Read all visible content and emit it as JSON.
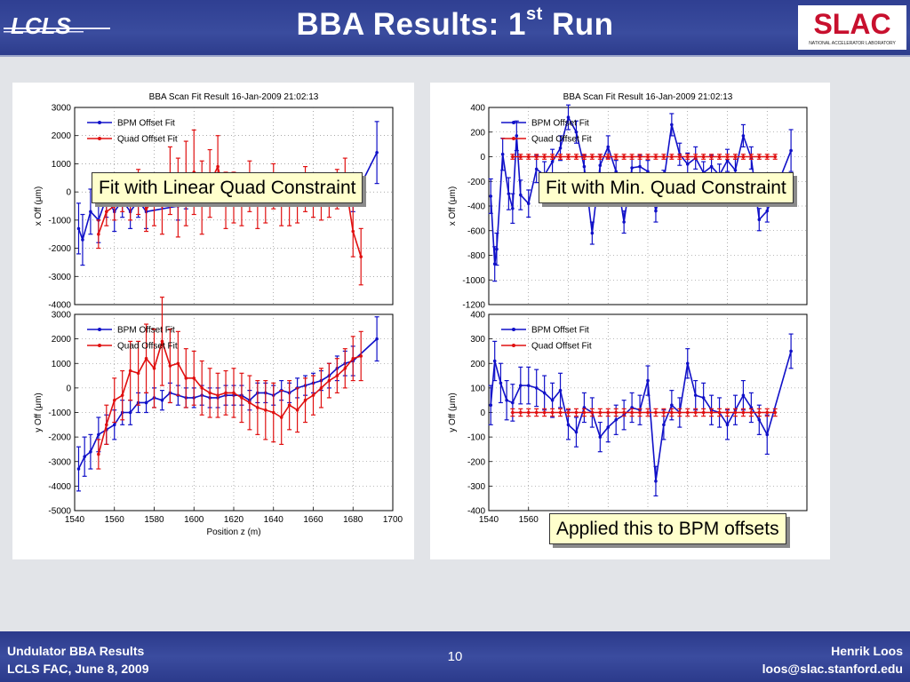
{
  "header": {
    "title_main": "BBA Results: 1",
    "title_sup": "st",
    "title_end": " Run",
    "logo_left": "LCLS",
    "logo_right": "SLAC",
    "logo_right_sub": "NATIONAL ACCELERATOR LABORATORY"
  },
  "callouts": {
    "linear": "Fit with Linear Quad Constraint",
    "min": "Fit with Min. Quad Constraint",
    "applied": "Applied this to BPM offsets"
  },
  "footer": {
    "left_line1": "Undulator BBA Results",
    "left_line2": "LCLS FAC, June 8, 2009",
    "page": "10",
    "right_line1": "Henrik Loos",
    "right_line2": "loos@slac.stanford.edu"
  },
  "colors": {
    "bpm": "#1010c8",
    "quad": "#e01010",
    "header": "#34449a"
  },
  "chart_data": [
    {
      "id": "left-x",
      "type": "line",
      "title": "BBA Scan Fit Result 16-Jan-2009 21:02:13",
      "ylabel": "x  Off   (μm)",
      "xlabel": "",
      "xlim": [
        1540,
        1700
      ],
      "ylim": [
        -4000,
        3000
      ],
      "xticks": [],
      "yticks": [
        3000,
        2000,
        1000,
        0,
        -1000,
        -2000,
        -3000,
        -4000
      ],
      "legend": [
        "BPM Offset Fit",
        "Quad Offset Fit"
      ],
      "series": [
        {
          "name": "BPM Offset Fit",
          "x": [
            1542,
            1544,
            1548,
            1552,
            1556,
            1560,
            1564,
            1568,
            1572,
            1576,
            1592,
            1596,
            1680,
            1692
          ],
          "y": [
            -1300,
            -1700,
            -700,
            -1000,
            -200,
            -700,
            -300,
            -700,
            -300,
            -700,
            -500,
            -100,
            -300,
            1400
          ],
          "err": [
            900,
            900,
            800,
            800,
            700,
            700,
            600,
            600,
            600,
            600,
            500,
            500,
            400,
            1100
          ]
        },
        {
          "name": "Quad Offset Fit",
          "x": [
            1552,
            1556,
            1560,
            1564,
            1568,
            1572,
            1576,
            1580,
            1584,
            1588,
            1592,
            1596,
            1600,
            1604,
            1608,
            1612,
            1616,
            1620,
            1624,
            1628,
            1632,
            1636,
            1640,
            1644,
            1648,
            1652,
            1656,
            1660,
            1664,
            1668,
            1672,
            1676,
            1680,
            1684
          ],
          "y": [
            -1500,
            -700,
            -500,
            -200,
            -400,
            0,
            -600,
            -300,
            -500,
            400,
            -200,
            300,
            700,
            -200,
            300,
            900,
            -300,
            -200,
            -300,
            200,
            -400,
            -300,
            200,
            -400,
            -400,
            -300,
            100,
            -200,
            -300,
            -200,
            100,
            400,
            -1400,
            -2300
          ],
          "err": [
            500,
            500,
            500,
            500,
            600,
            800,
            800,
            900,
            1000,
            1200,
            1400,
            1500,
            1500,
            1300,
            1200,
            1100,
            1000,
            900,
            900,
            900,
            900,
            800,
            800,
            800,
            800,
            800,
            800,
            700,
            700,
            700,
            700,
            800,
            900,
            1000
          ]
        }
      ]
    },
    {
      "id": "left-y",
      "type": "line",
      "title": "",
      "ylabel": "y  Off   (μm)",
      "xlabel": "Position z   (m)",
      "xlim": [
        1540,
        1700
      ],
      "ylim": [
        -5000,
        3000
      ],
      "xticks": [
        1540,
        1560,
        1580,
        1600,
        1620,
        1640,
        1660,
        1680,
        1700
      ],
      "yticks": [
        3000,
        2000,
        1000,
        0,
        -1000,
        -2000,
        -3000,
        -4000,
        -5000
      ],
      "legend": [
        "BPM Offset Fit",
        "Quad Offset Fit"
      ],
      "series": [
        {
          "name": "BPM Offset Fit",
          "x": [
            1542,
            1545,
            1548,
            1552,
            1556,
            1560,
            1564,
            1568,
            1572,
            1576,
            1580,
            1584,
            1588,
            1592,
            1596,
            1600,
            1604,
            1608,
            1612,
            1616,
            1620,
            1624,
            1628,
            1632,
            1636,
            1640,
            1644,
            1648,
            1652,
            1656,
            1660,
            1664,
            1668,
            1672,
            1676,
            1680,
            1692
          ],
          "y": [
            -3300,
            -2800,
            -2600,
            -1900,
            -1700,
            -1500,
            -1000,
            -1000,
            -600,
            -600,
            -400,
            -500,
            -200,
            -300,
            -400,
            -400,
            -300,
            -400,
            -400,
            -300,
            -300,
            -300,
            -500,
            -200,
            -200,
            -300,
            -100,
            -200,
            0,
            100,
            200,
            300,
            500,
            800,
            1000,
            1100,
            2000
          ],
          "err": [
            900,
            800,
            700,
            700,
            600,
            600,
            500,
            500,
            400,
            400,
            400,
            400,
            400,
            400,
            400,
            400,
            400,
            400,
            400,
            400,
            400,
            400,
            400,
            400,
            400,
            400,
            400,
            400,
            400,
            400,
            400,
            400,
            500,
            500,
            500,
            600,
            900
          ]
        },
        {
          "name": "Quad Offset Fit",
          "x": [
            1552,
            1556,
            1560,
            1564,
            1568,
            1572,
            1576,
            1580,
            1584,
            1588,
            1592,
            1596,
            1600,
            1604,
            1608,
            1612,
            1616,
            1620,
            1624,
            1628,
            1632,
            1636,
            1640,
            1644,
            1648,
            1652,
            1656,
            1660,
            1664,
            1668,
            1672,
            1676,
            1680,
            1684
          ],
          "y": [
            -2700,
            -1500,
            -500,
            -300,
            700,
            600,
            1200,
            800,
            1900,
            900,
            1000,
            400,
            400,
            0,
            -200,
            -300,
            -200,
            -200,
            -400,
            -600,
            -800,
            -900,
            -1000,
            -1200,
            -700,
            -900,
            -500,
            -300,
            0,
            300,
            500,
            800,
            1200,
            1300
          ],
          "err": [
            600,
            800,
            900,
            1000,
            1200,
            1300,
            1400,
            1600,
            1800,
            1500,
            1300,
            1200,
            1100,
            1100,
            1000,
            900,
            900,
            1000,
            1000,
            1100,
            1100,
            1200,
            1200,
            1100,
            1000,
            900,
            900,
            800,
            800,
            700,
            700,
            800,
            900,
            1000
          ]
        }
      ]
    },
    {
      "id": "right-x",
      "type": "line",
      "title": "BBA Scan Fit Result 16-Jan-2009 21:02:13",
      "ylabel": "x  Off   (μm)",
      "xlabel": "",
      "xlim": [
        1540,
        1700
      ],
      "ylim": [
        -1200,
        400
      ],
      "xticks": [],
      "yticks": [
        400,
        200,
        0,
        -200,
        -400,
        -600,
        -800,
        -1000,
        -1200
      ],
      "legend": [
        "BPM Offset Fit",
        "Quad Offset Fit"
      ],
      "series": [
        {
          "name": "BPM Offset Fit",
          "x": [
            1541,
            1543,
            1544,
            1547,
            1550,
            1552,
            1554,
            1556,
            1560,
            1564,
            1568,
            1572,
            1576,
            1580,
            1584,
            1588,
            1592,
            1596,
            1600,
            1604,
            1608,
            1612,
            1616,
            1620,
            1624,
            1628,
            1632,
            1636,
            1640,
            1644,
            1648,
            1652,
            1656,
            1660,
            1664,
            1668,
            1672,
            1676,
            1680,
            1692
          ],
          "y": [
            -320,
            -870,
            -750,
            20,
            -300,
            -420,
            170,
            -310,
            -380,
            -100,
            -150,
            -40,
            70,
            320,
            200,
            -80,
            -620,
            -70,
            80,
            -120,
            -530,
            -90,
            -80,
            -120,
            -440,
            -200,
            260,
            20,
            -60,
            -10,
            -130,
            -80,
            -150,
            -30,
            -110,
            170,
            -10,
            -510,
            -440,
            50
          ],
          "err": [
            140,
            140,
            130,
            130,
            130,
            120,
            120,
            120,
            110,
            110,
            110,
            100,
            100,
            100,
            90,
            90,
            90,
            90,
            90,
            90,
            90,
            90,
            90,
            90,
            90,
            90,
            90,
            90,
            90,
            90,
            90,
            90,
            90,
            90,
            90,
            90,
            90,
            90,
            90,
            170
          ]
        },
        {
          "name": "Quad Offset Fit",
          "x": [
            1552,
            1556,
            1560,
            1564,
            1568,
            1572,
            1576,
            1580,
            1584,
            1588,
            1592,
            1596,
            1600,
            1604,
            1608,
            1612,
            1616,
            1620,
            1624,
            1628,
            1632,
            1636,
            1640,
            1644,
            1648,
            1652,
            1656,
            1660,
            1664,
            1668,
            1672,
            1676,
            1680,
            1684
          ],
          "y": [
            0,
            0,
            0,
            0,
            0,
            0,
            0,
            0,
            0,
            0,
            0,
            0,
            0,
            0,
            0,
            0,
            0,
            0,
            0,
            0,
            0,
            0,
            0,
            0,
            0,
            0,
            0,
            0,
            0,
            0,
            0,
            0,
            0,
            0
          ],
          "err": [
            20,
            20,
            20,
            20,
            20,
            20,
            20,
            20,
            20,
            20,
            20,
            20,
            20,
            20,
            20,
            20,
            20,
            20,
            20,
            20,
            20,
            20,
            20,
            20,
            20,
            20,
            20,
            20,
            20,
            20,
            20,
            20,
            20,
            20
          ]
        }
      ]
    },
    {
      "id": "right-y",
      "type": "line",
      "title": "",
      "ylabel": "y  Off   (μm)",
      "xlabel": "",
      "xlim": [
        1540,
        1700
      ],
      "ylim": [
        -400,
        400
      ],
      "xticks": [
        1540,
        1560
      ],
      "yticks": [
        400,
        300,
        200,
        100,
        0,
        -100,
        -200,
        -300,
        -400
      ],
      "legend": [
        "BPM Offset Fit",
        "Quad Offset Fit"
      ],
      "series": [
        {
          "name": "BPM Offset Fit",
          "x": [
            1541,
            1543,
            1546,
            1549,
            1552,
            1556,
            1560,
            1564,
            1568,
            1572,
            1576,
            1580,
            1584,
            1588,
            1592,
            1596,
            1600,
            1604,
            1608,
            1612,
            1616,
            1620,
            1624,
            1628,
            1632,
            1636,
            1640,
            1644,
            1648,
            1652,
            1656,
            1660,
            1664,
            1668,
            1672,
            1676,
            1680,
            1692
          ],
          "y": [
            30,
            210,
            120,
            50,
            40,
            110,
            110,
            100,
            80,
            50,
            90,
            -50,
            -80,
            20,
            0,
            -100,
            -60,
            -30,
            -10,
            20,
            10,
            130,
            -280,
            -50,
            30,
            0,
            200,
            70,
            60,
            10,
            0,
            -50,
            10,
            70,
            20,
            -30,
            -90,
            250
          ],
          "err": [
            80,
            80,
            80,
            80,
            75,
            75,
            75,
            75,
            70,
            70,
            70,
            60,
            60,
            60,
            60,
            60,
            60,
            60,
            60,
            60,
            60,
            60,
            60,
            60,
            60,
            60,
            60,
            60,
            60,
            60,
            60,
            60,
            60,
            60,
            60,
            60,
            80,
            70
          ]
        },
        {
          "name": "Quad Offset Fit",
          "x": [
            1552,
            1556,
            1560,
            1564,
            1568,
            1572,
            1576,
            1580,
            1584,
            1588,
            1592,
            1596,
            1600,
            1604,
            1608,
            1612,
            1616,
            1620,
            1624,
            1628,
            1632,
            1636,
            1640,
            1644,
            1648,
            1652,
            1656,
            1660,
            1664,
            1668,
            1672,
            1676,
            1680,
            1684
          ],
          "y": [
            0,
            0,
            0,
            0,
            0,
            0,
            0,
            0,
            0,
            0,
            0,
            0,
            0,
            0,
            0,
            0,
            0,
            0,
            0,
            0,
            0,
            0,
            0,
            0,
            0,
            0,
            0,
            0,
            0,
            0,
            0,
            0,
            0,
            0
          ],
          "err": [
            15,
            15,
            15,
            15,
            15,
            15,
            15,
            15,
            15,
            15,
            15,
            15,
            15,
            15,
            15,
            15,
            15,
            15,
            15,
            15,
            15,
            15,
            15,
            15,
            15,
            15,
            15,
            15,
            15,
            15,
            15,
            15,
            15,
            15
          ]
        }
      ]
    }
  ]
}
